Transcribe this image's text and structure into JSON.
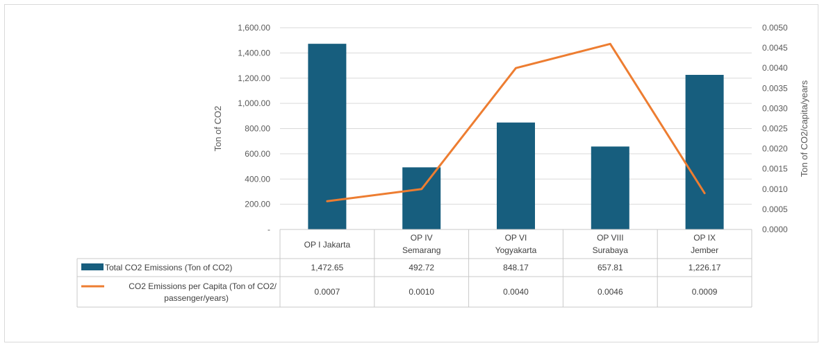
{
  "chart_data": {
    "type": "bar",
    "categories": [
      [
        "OP I Jakarta"
      ],
      [
        "OP IV",
        "Semarang"
      ],
      [
        "OP VI",
        "Yogyakarta"
      ],
      [
        "OP VIII",
        "Surabaya"
      ],
      [
        "OP IX",
        "Jember"
      ]
    ],
    "series": [
      {
        "name": "Total CO2 Emissions (Ton of CO2)",
        "type": "bar",
        "axis": "left",
        "color": "#175E7E",
        "values": [
          1472.65,
          492.72,
          848.17,
          657.81,
          1226.17
        ],
        "labels": [
          "1,472.65",
          "492.72",
          "848.17",
          "657.81",
          "1,226.17"
        ]
      },
      {
        "name_lines": [
          "CO2 Emissions per Capita  (Ton of CO2/",
          "passenger/years)"
        ],
        "type": "line",
        "axis": "right",
        "color": "#ED7D31",
        "values": [
          0.0007,
          0.001,
          0.004,
          0.0046,
          0.0009
        ],
        "labels": [
          "0.0007",
          "0.0010",
          "0.0040",
          "0.0046",
          "0.0009"
        ]
      }
    ],
    "y_left": {
      "label": "Ton of CO2",
      "min": 0,
      "max": 1600,
      "step": 200,
      "tick_labels": [
        "-",
        "200.00",
        "400.00",
        "600.00",
        "800.00",
        "1,000.00",
        "1,200.00",
        "1,400.00",
        "1,600.00"
      ]
    },
    "y_right": {
      "label": "Ton of CO2/capita/years",
      "min": 0,
      "max": 0.005,
      "step": 0.0005,
      "tick_labels": [
        "0.0000",
        "0.0005",
        "0.0010",
        "0.0015",
        "0.0020",
        "0.0025",
        "0.0030",
        "0.0035",
        "0.0040",
        "0.0045",
        "0.0050"
      ]
    },
    "grid": true,
    "legend": "data table below chart"
  }
}
